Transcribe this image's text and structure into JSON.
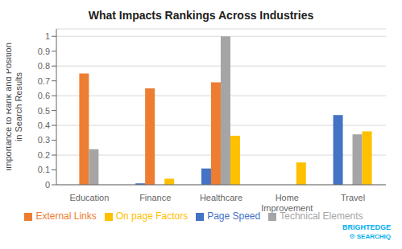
{
  "chart_data": {
    "type": "bar",
    "title": "What Impacts Rankings Across Industries",
    "categories": [
      "Education",
      "Finance",
      "Healthcare",
      "Home\nImprovement",
      "Travel"
    ],
    "series": [
      {
        "name": "Page Speed",
        "color": "#4472C4",
        "values": [
          0.0,
          0.01,
          0.11,
          0.0,
          0.47
        ]
      },
      {
        "name": "External Links",
        "color": "#ED7D31",
        "values": [
          0.75,
          0.65,
          0.69,
          0.0,
          0.0
        ]
      },
      {
        "name": "Technical Elements",
        "color": "#A5A5A5",
        "values": [
          0.24,
          0.0,
          1.0,
          0.0,
          0.34
        ]
      },
      {
        "name": "On page Factors",
        "color": "#FFC000",
        "values": [
          0.0,
          0.04,
          0.33,
          0.15,
          0.36
        ]
      }
    ],
    "ylabel": "Importance to Rank and Position\nin Search Results",
    "ylim": [
      0,
      1.05
    ],
    "yticks": [
      0,
      0.1,
      0.2,
      0.3,
      0.4,
      0.5,
      0.6,
      0.7,
      0.8,
      0.9,
      1
    ],
    "grid": true,
    "legend": "bottom",
    "annotations": [
      "BRIGHTEDGE",
      "⚙ SEARCHIQ"
    ]
  }
}
